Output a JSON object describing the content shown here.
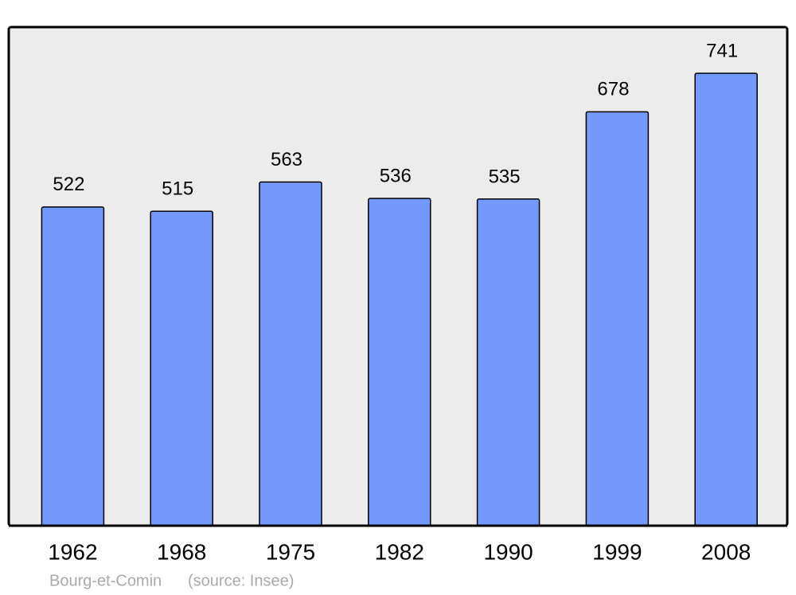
{
  "chart_data": {
    "type": "bar",
    "categories": [
      "1962",
      "1968",
      "1975",
      "1982",
      "1990",
      "1999",
      "2008"
    ],
    "values": [
      522,
      515,
      563,
      536,
      535,
      678,
      741
    ],
    "color": "#7399ff",
    "footnote": [
      "Bourg-et-Comin",
      "(source: Insee)"
    ]
  }
}
